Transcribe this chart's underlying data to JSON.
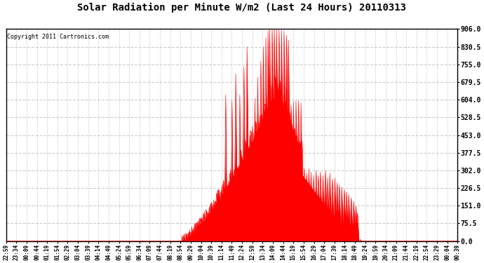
{
  "title": "Solar Radiation per Minute W/m2 (Last 24 Hours) 20110313",
  "copyright_text": "Copyright 2011 Cartronics.com",
  "background_color": "#ffffff",
  "plot_bg_color": "#ffffff",
  "bar_color": "#ff0000",
  "grid_color": "#bbbbbb",
  "bottom_dashed_color": "#ff0000",
  "ymin": 0.0,
  "ymax": 906.0,
  "yticks": [
    0.0,
    75.5,
    151.0,
    226.5,
    302.0,
    377.5,
    453.0,
    528.5,
    604.0,
    679.5,
    755.0,
    830.5,
    906.0
  ],
  "x_labels": [
    "22:59",
    "23:34",
    "00:09",
    "00:44",
    "01:19",
    "01:54",
    "02:29",
    "03:04",
    "03:39",
    "04:14",
    "04:49",
    "05:24",
    "05:59",
    "06:34",
    "07:09",
    "07:44",
    "08:19",
    "08:54",
    "09:29",
    "10:04",
    "10:39",
    "11:14",
    "11:49",
    "12:24",
    "12:59",
    "13:34",
    "14:09",
    "14:44",
    "15:19",
    "15:54",
    "16:29",
    "17:04",
    "17:39",
    "18:14",
    "18:49",
    "19:24",
    "19:59",
    "20:34",
    "21:09",
    "21:44",
    "22:19",
    "22:54",
    "23:29",
    "00:04",
    "00:39"
  ],
  "num_points": 1440,
  "figwidth": 6.9,
  "figheight": 3.75,
  "dpi": 100
}
